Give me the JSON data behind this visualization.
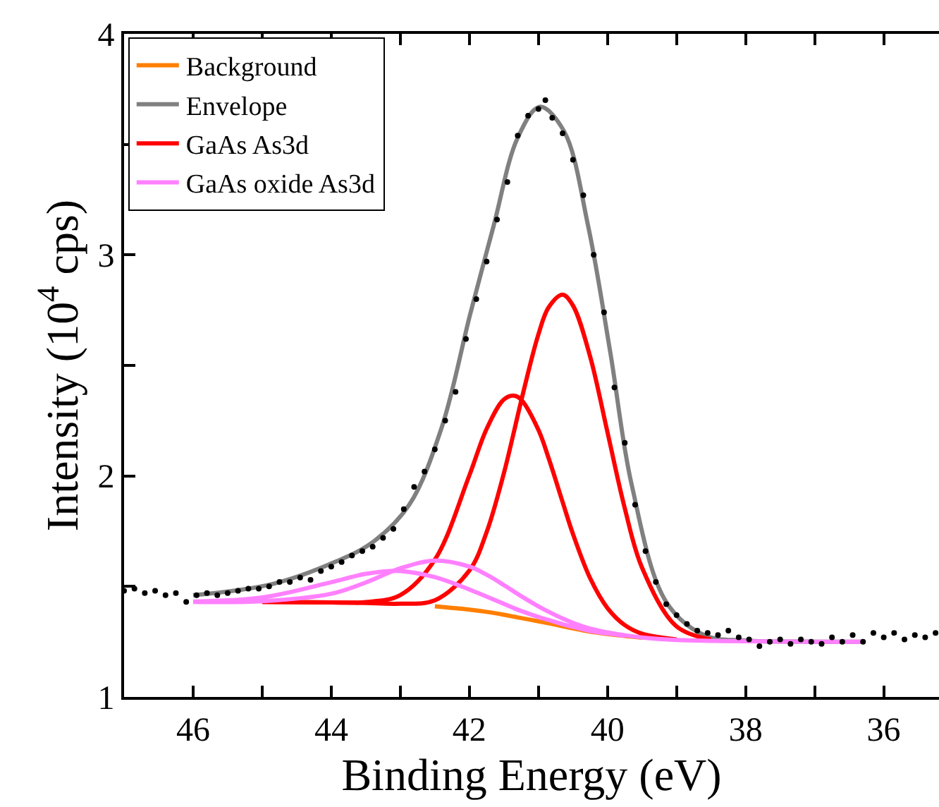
{
  "chart_data": {
    "type": "line",
    "xlabel": "Binding Energy (eV)",
    "ylabel": "Intensity (10$^{4}$ cps)",
    "xlim": [
      47,
      35.2
    ],
    "ylim": [
      1,
      4
    ],
    "xticks": [
      {
        "value": 47,
        "label": null
      },
      46,
      {
        "value": 45,
        "label": null
      },
      44,
      {
        "value": 43,
        "label": null
      },
      42,
      {
        "value": 41,
        "label": null
      },
      40,
      {
        "value": 39,
        "label": null
      },
      38,
      {
        "value": 37,
        "label": null
      },
      36
    ],
    "yticks": [
      1,
      {
        "value": 1.5,
        "label": null
      },
      2,
      {
        "value": 2.5,
        "label": null
      },
      3,
      {
        "value": 3.5,
        "label": null
      },
      4
    ],
    "legend": "top left",
    "marker": "none",
    "line_style": "solid",
    "x": [
      46,
      45,
      44,
      43.5,
      43,
      42.5,
      42,
      41.75,
      41.5,
      41.35,
      41.25,
      41,
      40.85,
      40.65,
      40.5,
      40.25,
      40,
      39.75,
      39.5,
      39,
      38.5,
      38,
      37,
      36.3
    ],
    "series": [
      {
        "name": "Background",
        "color": "#ff7f00",
        "values": [
          null,
          null,
          null,
          null,
          null,
          1.41,
          1.395,
          1.385,
          1.372,
          1.363,
          1.357,
          1.342,
          1.333,
          1.32,
          1.31,
          1.295,
          1.285,
          1.276,
          1.268,
          null,
          null,
          null,
          null,
          null
        ]
      },
      {
        "name": "Envelope",
        "color": "#808080",
        "x": [
          46,
          44.86,
          43.95,
          43.4,
          42.87,
          42.4,
          41.99,
          41.65,
          41.3,
          40.98,
          40.63,
          40.28,
          39.96,
          39.65,
          39.15,
          38.6,
          38,
          37,
          36.3
        ],
        "values": [
          1.46,
          1.51,
          1.61,
          1.7,
          1.87,
          2.22,
          2.73,
          3.13,
          3.53,
          3.67,
          3.56,
          3.13,
          2.56,
          1.96,
          1.43,
          1.28,
          1.255,
          1.25,
          1.25
        ]
      },
      {
        "name": "GaAs As3d",
        "color": "#ff0000",
        "values": [
          null,
          1.43,
          1.428,
          1.425,
          1.422,
          1.437,
          1.572,
          1.746,
          2.013,
          2.206,
          2.339,
          2.641,
          2.764,
          2.82,
          2.771,
          2.538,
          2.197,
          1.854,
          1.585,
          1.319,
          1.26,
          null,
          null,
          null
        ]
      },
      {
        "color": "#ff0000",
        "values": [
          null,
          1.43,
          1.428,
          1.429,
          1.461,
          1.621,
          2.003,
          2.213,
          2.346,
          2.363,
          2.345,
          2.208,
          2.078,
          1.882,
          1.737,
          1.536,
          1.402,
          1.325,
          1.286,
          1.26,
          null,
          null,
          null,
          null
        ]
      },
      {
        "name": "GaAs oxide As3d",
        "color": "#ff80ff",
        "values": [
          1.43,
          1.433,
          1.467,
          1.518,
          1.582,
          1.617,
          1.59,
          1.553,
          1.506,
          1.476,
          1.456,
          1.41,
          1.385,
          1.355,
          1.335,
          1.309,
          1.292,
          1.279,
          1.269,
          1.258,
          1.254,
          1.252,
          1.25,
          1.25
        ]
      },
      {
        "color": "#ff80ff",
        "values": [
          1.432,
          1.45,
          1.519,
          1.557,
          1.57,
          1.542,
          1.486,
          1.454,
          1.421,
          1.401,
          1.389,
          1.362,
          1.348,
          1.329,
          1.317,
          1.298,
          1.287,
          1.277,
          null,
          null,
          null,
          null,
          null,
          null
        ]
      },
      {
        "type": "scatter",
        "marker": "circle",
        "color": "#000000",
        "x": [
          47.0,
          46.85,
          46.7,
          46.55,
          46.4,
          46.25,
          46.1,
          45.95,
          45.8,
          45.65,
          45.5,
          45.35,
          45.2,
          45.05,
          44.9,
          44.75,
          44.6,
          44.45,
          44.3,
          44.15,
          44.0,
          43.85,
          43.7,
          43.55,
          43.4,
          43.25,
          43.1,
          42.95,
          42.8,
          42.65,
          42.5,
          42.35,
          42.2,
          42.05,
          41.9,
          41.75,
          41.6,
          41.45,
          41.3,
          41.15,
          41.0,
          40.9,
          40.8,
          40.65,
          40.5,
          40.35,
          40.2,
          40.05,
          39.9,
          39.75,
          39.6,
          39.45,
          39.3,
          39.15,
          39.0,
          38.85,
          38.7,
          38.55,
          38.4,
          38.25,
          38.1,
          37.95,
          37.8,
          37.65,
          37.5,
          37.35,
          37.2,
          37.05,
          36.9,
          36.75,
          36.6,
          36.45,
          36.3,
          36.15,
          36.0,
          35.85,
          35.7,
          35.55,
          35.4,
          35.25
        ],
        "values": [
          1.48,
          1.49,
          1.47,
          1.48,
          1.46,
          1.47,
          1.43,
          1.46,
          1.47,
          1.46,
          1.47,
          1.48,
          1.49,
          1.49,
          1.5,
          1.52,
          1.52,
          1.54,
          1.53,
          1.57,
          1.59,
          1.61,
          1.64,
          1.66,
          1.68,
          1.72,
          1.76,
          1.85,
          1.95,
          2.02,
          2.12,
          2.25,
          2.38,
          2.62,
          2.8,
          2.97,
          3.16,
          3.33,
          3.54,
          3.63,
          3.66,
          3.7,
          3.62,
          3.55,
          3.43,
          3.27,
          3.0,
          2.74,
          2.4,
          2.15,
          1.87,
          1.66,
          1.52,
          1.42,
          1.37,
          1.33,
          1.3,
          1.29,
          1.28,
          1.3,
          1.27,
          1.26,
          1.23,
          1.25,
          1.26,
          1.24,
          1.26,
          1.25,
          1.24,
          1.27,
          1.25,
          1.28,
          1.25,
          1.29,
          1.27,
          1.29,
          1.26,
          1.28,
          1.27,
          1.29
        ]
      }
    ]
  }
}
